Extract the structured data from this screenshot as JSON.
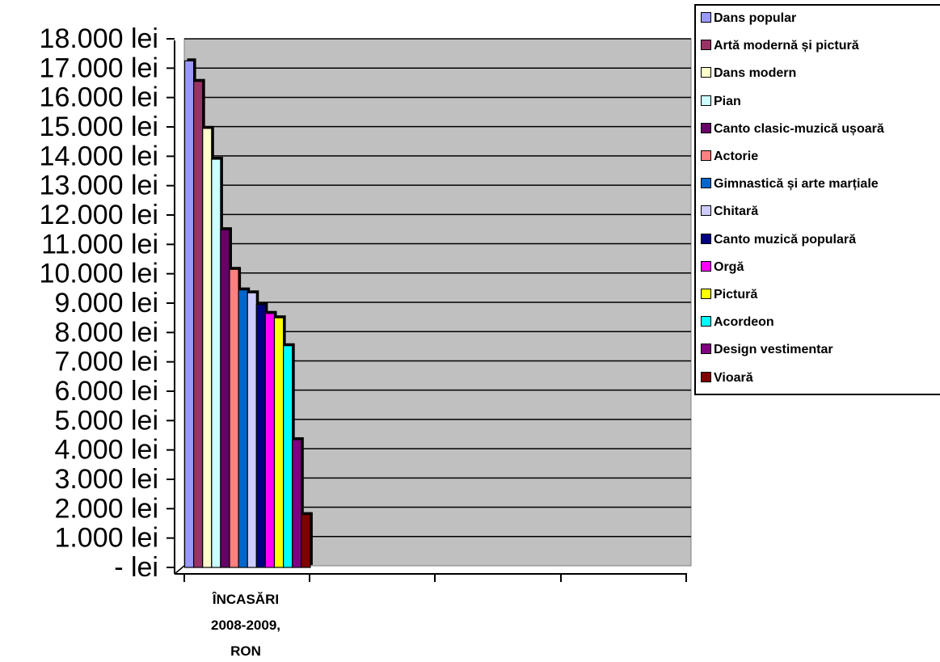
{
  "chart_data": {
    "type": "bar",
    "categories": [
      "ÎNCASĂRI 2008-2009, RON"
    ],
    "category_lines": [
      "ÎNCASĂRI",
      "2008-2009,",
      "RON"
    ],
    "ylim": [
      0,
      18000
    ],
    "yticks": [
      0,
      1000,
      2000,
      3000,
      4000,
      5000,
      6000,
      7000,
      8000,
      9000,
      10000,
      11000,
      12000,
      13000,
      14000,
      15000,
      16000,
      17000,
      18000
    ],
    "ytick_labels": [
      "- lei",
      "1.000 lei",
      "2.000 lei",
      "3.000 lei",
      "4.000 lei",
      "5.000 lei",
      "6.000 lei",
      "7.000 lei",
      "8.000 lei",
      "9.000 lei",
      "10.000 lei",
      "11.000 lei",
      "12.000 lei",
      "13.000 lei",
      "14.000 lei",
      "15.000 lei",
      "16.000 lei",
      "17.000 lei",
      "18.000 lei"
    ],
    "grid": true,
    "legend_position": "top-right",
    "plot_background": "#c0c0c0",
    "series": [
      {
        "name": "Dans popular",
        "values": [
          17250
        ],
        "color": "#9999ff"
      },
      {
        "name": "Artă modernă și pictură",
        "values": [
          16550
        ],
        "color": "#993366"
      },
      {
        "name": "Dans modern",
        "values": [
          14950
        ],
        "color": "#ffffcc"
      },
      {
        "name": "Pian",
        "values": [
          13900
        ],
        "color": "#ccffff"
      },
      {
        "name": "Canto clasic-muzică ușoară",
        "values": [
          11500
        ],
        "color": "#660066"
      },
      {
        "name": "Actorie",
        "values": [
          10150
        ],
        "color": "#ff8080"
      },
      {
        "name": "Gimnastică și arte marțiale",
        "values": [
          9450
        ],
        "color": "#0066cc"
      },
      {
        "name": "Chitară",
        "values": [
          9350
        ],
        "color": "#ccccff"
      },
      {
        "name": "Canto muzică populară",
        "values": [
          8950
        ],
        "color": "#000080"
      },
      {
        "name": "Orgă",
        "values": [
          8650
        ],
        "color": "#ff00ff"
      },
      {
        "name": "Pictură",
        "values": [
          8500
        ],
        "color": "#ffff00"
      },
      {
        "name": "Acordeon",
        "values": [
          7550
        ],
        "color": "#00ffff"
      },
      {
        "name": "Design vestimentar",
        "values": [
          4350
        ],
        "color": "#800080"
      },
      {
        "name": "Vioară",
        "values": [
          1800
        ],
        "color": "#800000"
      }
    ]
  }
}
